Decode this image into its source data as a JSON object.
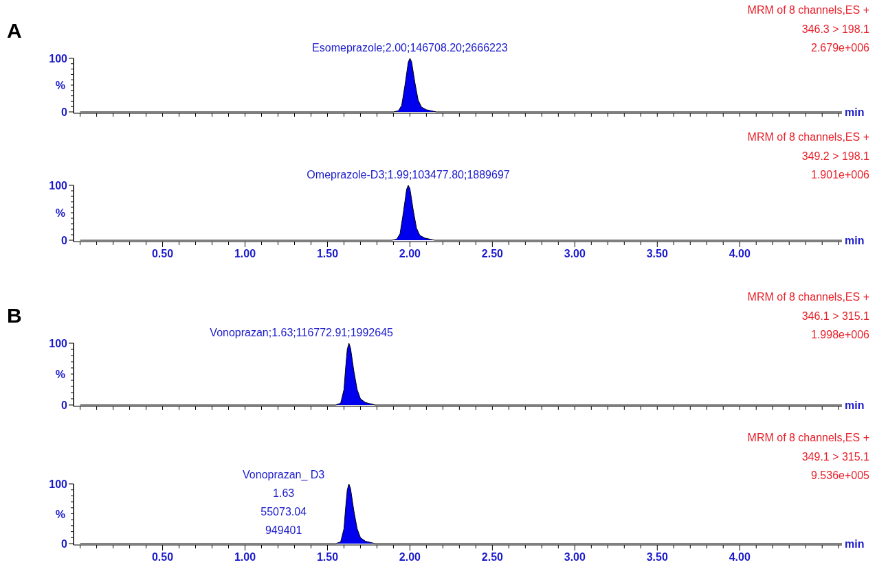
{
  "chart_data": [
    {
      "type": "area",
      "title": "A",
      "xlabel": "min",
      "ylabel": "%",
      "xlim": [
        -0.04,
        4.62
      ],
      "ylim": [
        0,
        100
      ],
      "tick_labels": "y",
      "grid": false,
      "xticks": [
        {
          "value": 0,
          "label": null
        },
        {
          "value": 0.1,
          "label": null
        },
        {
          "value": 0.2,
          "label": null
        },
        {
          "value": 0.3,
          "label": null
        },
        {
          "value": 0.4,
          "label": null
        },
        {
          "value": 0.5,
          "label": null
        },
        {
          "value": 0.6,
          "label": null
        },
        {
          "value": 0.7,
          "label": null
        },
        {
          "value": 0.8,
          "label": null
        },
        {
          "value": 0.9,
          "label": null
        },
        {
          "value": 1,
          "label": null
        },
        {
          "value": 1.1,
          "label": null
        },
        {
          "value": 1.2,
          "label": null
        },
        {
          "value": 1.3,
          "label": null
        },
        {
          "value": 1.4,
          "label": null
        },
        {
          "value": 1.5,
          "label": null
        },
        {
          "value": 1.6,
          "label": null
        },
        {
          "value": 1.7,
          "label": null
        },
        {
          "value": 1.8,
          "label": null
        },
        {
          "value": 1.9,
          "label": null
        },
        {
          "value": 2,
          "label": null
        },
        {
          "value": 2.1,
          "label": null
        },
        {
          "value": 2.2,
          "label": null
        },
        {
          "value": 2.3,
          "label": null
        },
        {
          "value": 2.4,
          "label": null
        },
        {
          "value": 2.5,
          "label": null
        },
        {
          "value": 2.6,
          "label": null
        },
        {
          "value": 2.7,
          "label": null
        },
        {
          "value": 2.8,
          "label": null
        },
        {
          "value": 2.9,
          "label": null
        },
        {
          "value": 3,
          "label": null
        },
        {
          "value": 3.1,
          "label": null
        },
        {
          "value": 3.2,
          "label": null
        },
        {
          "value": 3.3,
          "label": null
        },
        {
          "value": 3.4,
          "label": null
        },
        {
          "value": 3.5,
          "label": null
        },
        {
          "value": 3.6,
          "label": null
        },
        {
          "value": 3.7,
          "label": null
        },
        {
          "value": 3.8,
          "label": null
        },
        {
          "value": 3.9,
          "label": null
        },
        {
          "value": 4,
          "label": null
        },
        {
          "value": 4.1,
          "label": null
        },
        {
          "value": 4.2,
          "label": null
        },
        {
          "value": 4.3,
          "label": null
        },
        {
          "value": 4.4,
          "label": null
        },
        {
          "value": 4.5,
          "label": null
        },
        {
          "value": 4.6,
          "label": null
        }
      ],
      "yticks": [
        {
          "value": 0,
          "label": "0"
        },
        {
          "value": 10,
          "label": null
        },
        {
          "value": 20,
          "label": null
        },
        {
          "value": 30,
          "label": null
        },
        {
          "value": 40,
          "label": null
        },
        {
          "value": 50,
          "label": null
        },
        {
          "value": 60,
          "label": null
        },
        {
          "value": 70,
          "label": null
        },
        {
          "value": 80,
          "label": null
        },
        {
          "value": 90,
          "label": null
        },
        {
          "value": 100,
          "label": "100"
        }
      ],
      "series": [
        {
          "color": "#0000ee",
          "x": [
            0,
            1.9,
            1.93,
            1.95,
            1.97,
            1.99,
            2.0,
            2.01,
            2.03,
            2.05,
            2.07,
            2.1,
            2.13,
            2.16,
            4.62
          ],
          "values": [
            0,
            0,
            2,
            12,
            50,
            93,
            100,
            94,
            55,
            22,
            9,
            4,
            2,
            0,
            0
          ]
        }
      ],
      "annotations": [
        "MRM of 8 channels,ES +",
        "346.3 > 198.1",
        "2.679e+006",
        {
          "text": "Esomeprazole;2.00;146708.20;2666223",
          "x": 2.0,
          "y": 100
        }
      ]
    },
    {
      "type": "area",
      "xlabel": "min",
      "ylabel": "%",
      "xlim": [
        -0.04,
        4.62
      ],
      "ylim": [
        0,
        100
      ],
      "grid": false,
      "xticks": [
        {
          "value": 0,
          "label": null
        },
        {
          "value": 0.1,
          "label": null
        },
        {
          "value": 0.2,
          "label": null
        },
        {
          "value": 0.3,
          "label": null
        },
        {
          "value": 0.4,
          "label": null
        },
        {
          "value": 0.5,
          "label": "0.50"
        },
        {
          "value": 0.6,
          "label": null
        },
        {
          "value": 0.7,
          "label": null
        },
        {
          "value": 0.8,
          "label": null
        },
        {
          "value": 0.9,
          "label": null
        },
        {
          "value": 1,
          "label": "1.00"
        },
        {
          "value": 1.1,
          "label": null
        },
        {
          "value": 1.2,
          "label": null
        },
        {
          "value": 1.3,
          "label": null
        },
        {
          "value": 1.4,
          "label": null
        },
        {
          "value": 1.5,
          "label": "1.50"
        },
        {
          "value": 1.6,
          "label": null
        },
        {
          "value": 1.7,
          "label": null
        },
        {
          "value": 1.8,
          "label": null
        },
        {
          "value": 1.9,
          "label": null
        },
        {
          "value": 2,
          "label": "2.00"
        },
        {
          "value": 2.1,
          "label": null
        },
        {
          "value": 2.2,
          "label": null
        },
        {
          "value": 2.3,
          "label": null
        },
        {
          "value": 2.4,
          "label": null
        },
        {
          "value": 2.5,
          "label": "2.50"
        },
        {
          "value": 2.6,
          "label": null
        },
        {
          "value": 2.7,
          "label": null
        },
        {
          "value": 2.8,
          "label": null
        },
        {
          "value": 2.9,
          "label": null
        },
        {
          "value": 3,
          "label": "3.00"
        },
        {
          "value": 3.1,
          "label": null
        },
        {
          "value": 3.2,
          "label": null
        },
        {
          "value": 3.3,
          "label": null
        },
        {
          "value": 3.4,
          "label": null
        },
        {
          "value": 3.5,
          "label": "3.50"
        },
        {
          "value": 3.6,
          "label": null
        },
        {
          "value": 3.7,
          "label": null
        },
        {
          "value": 3.8,
          "label": null
        },
        {
          "value": 3.9,
          "label": null
        },
        {
          "value": 4,
          "label": "4.00"
        },
        {
          "value": 4.1,
          "label": null
        },
        {
          "value": 4.2,
          "label": null
        },
        {
          "value": 4.3,
          "label": null
        },
        {
          "value": 4.4,
          "label": null
        },
        {
          "value": 4.5,
          "label": null
        },
        {
          "value": 4.6,
          "label": null
        }
      ],
      "yticks": [
        {
          "value": 0,
          "label": "0"
        },
        {
          "value": 10,
          "label": null
        },
        {
          "value": 20,
          "label": null
        },
        {
          "value": 30,
          "label": null
        },
        {
          "value": 40,
          "label": null
        },
        {
          "value": 50,
          "label": null
        },
        {
          "value": 60,
          "label": null
        },
        {
          "value": 70,
          "label": null
        },
        {
          "value": 80,
          "label": null
        },
        {
          "value": 90,
          "label": null
        },
        {
          "value": 100,
          "label": "100"
        }
      ],
      "series": [
        {
          "color": "#0000ee",
          "x": [
            0,
            1.89,
            1.92,
            1.94,
            1.96,
            1.98,
            1.99,
            2.0,
            2.02,
            2.04,
            2.06,
            2.09,
            2.12,
            2.15,
            4.62
          ],
          "values": [
            0,
            0,
            2,
            12,
            50,
            93,
            100,
            94,
            55,
            22,
            9,
            4,
            2,
            0,
            0
          ]
        }
      ],
      "annotations": [
        "MRM of 8 channels,ES +",
        "349.2 > 198.1",
        "1.901e+006",
        {
          "text": "Omeprazole-D3;1.99;103477.80;1889697",
          "x": 1.99,
          "y": 100
        }
      ]
    },
    {
      "type": "area",
      "title": "B",
      "xlabel": "min",
      "ylabel": "%",
      "xlim": [
        -0.04,
        4.62
      ],
      "ylim": [
        0,
        100
      ],
      "tick_labels": "y",
      "grid": false,
      "xticks": [
        {
          "value": 0,
          "label": null
        },
        {
          "value": 0.1,
          "label": null
        },
        {
          "value": 0.2,
          "label": null
        },
        {
          "value": 0.3,
          "label": null
        },
        {
          "value": 0.4,
          "label": null
        },
        {
          "value": 0.5,
          "label": null
        },
        {
          "value": 0.6,
          "label": null
        },
        {
          "value": 0.7,
          "label": null
        },
        {
          "value": 0.8,
          "label": null
        },
        {
          "value": 0.9,
          "label": null
        },
        {
          "value": 1,
          "label": null
        },
        {
          "value": 1.1,
          "label": null
        },
        {
          "value": 1.2,
          "label": null
        },
        {
          "value": 1.3,
          "label": null
        },
        {
          "value": 1.4,
          "label": null
        },
        {
          "value": 1.5,
          "label": null
        },
        {
          "value": 1.6,
          "label": null
        },
        {
          "value": 1.7,
          "label": null
        },
        {
          "value": 1.8,
          "label": null
        },
        {
          "value": 1.9,
          "label": null
        },
        {
          "value": 2,
          "label": null
        },
        {
          "value": 2.1,
          "label": null
        },
        {
          "value": 2.2,
          "label": null
        },
        {
          "value": 2.3,
          "label": null
        },
        {
          "value": 2.4,
          "label": null
        },
        {
          "value": 2.5,
          "label": null
        },
        {
          "value": 2.6,
          "label": null
        },
        {
          "value": 2.7,
          "label": null
        },
        {
          "value": 2.8,
          "label": null
        },
        {
          "value": 2.9,
          "label": null
        },
        {
          "value": 3,
          "label": null
        },
        {
          "value": 3.1,
          "label": null
        },
        {
          "value": 3.2,
          "label": null
        },
        {
          "value": 3.3,
          "label": null
        },
        {
          "value": 3.4,
          "label": null
        },
        {
          "value": 3.5,
          "label": null
        },
        {
          "value": 3.6,
          "label": null
        },
        {
          "value": 3.7,
          "label": null
        },
        {
          "value": 3.8,
          "label": null
        },
        {
          "value": 3.9,
          "label": null
        },
        {
          "value": 4,
          "label": null
        },
        {
          "value": 4.1,
          "label": null
        },
        {
          "value": 4.2,
          "label": null
        },
        {
          "value": 4.3,
          "label": null
        },
        {
          "value": 4.4,
          "label": null
        },
        {
          "value": 4.5,
          "label": null
        },
        {
          "value": 4.6,
          "label": null
        }
      ],
      "yticks": [
        {
          "value": 0,
          "label": "0"
        },
        {
          "value": 10,
          "label": null
        },
        {
          "value": 20,
          "label": null
        },
        {
          "value": 30,
          "label": null
        },
        {
          "value": 40,
          "label": null
        },
        {
          "value": 50,
          "label": null
        },
        {
          "value": 60,
          "label": null
        },
        {
          "value": 70,
          "label": null
        },
        {
          "value": 80,
          "label": null
        },
        {
          "value": 90,
          "label": null
        },
        {
          "value": 100,
          "label": "100"
        }
      ],
      "series": [
        {
          "color": "#0000ee",
          "x": [
            0,
            1.55,
            1.58,
            1.6,
            1.61,
            1.62,
            1.63,
            1.64,
            1.66,
            1.68,
            1.7,
            1.73,
            1.76,
            1.79,
            4.62
          ],
          "values": [
            0,
            0,
            3,
            25,
            60,
            90,
            100,
            92,
            55,
            25,
            10,
            4,
            2,
            0,
            0
          ]
        }
      ],
      "annotations": [
        "MRM of 8 channels,ES +",
        "346.1 > 315.1",
        "1.998e+006",
        {
          "text": "Vonoprazan;1.63;116772.91;1992645",
          "x": 1.63,
          "y": 100
        }
      ]
    },
    {
      "type": "area",
      "xlabel": "min",
      "ylabel": "%",
      "xlim": [
        -0.04,
        4.62
      ],
      "ylim": [
        0,
        100
      ],
      "grid": false,
      "xticks": [
        {
          "value": 0,
          "label": null
        },
        {
          "value": 0.1,
          "label": null
        },
        {
          "value": 0.2,
          "label": null
        },
        {
          "value": 0.3,
          "label": null
        },
        {
          "value": 0.4,
          "label": null
        },
        {
          "value": 0.5,
          "label": "0.50"
        },
        {
          "value": 0.6,
          "label": null
        },
        {
          "value": 0.7,
          "label": null
        },
        {
          "value": 0.8,
          "label": null
        },
        {
          "value": 0.9,
          "label": null
        },
        {
          "value": 1,
          "label": "1.00"
        },
        {
          "value": 1.1,
          "label": null
        },
        {
          "value": 1.2,
          "label": null
        },
        {
          "value": 1.3,
          "label": null
        },
        {
          "value": 1.4,
          "label": null
        },
        {
          "value": 1.5,
          "label": "1.50"
        },
        {
          "value": 1.6,
          "label": null
        },
        {
          "value": 1.7,
          "label": null
        },
        {
          "value": 1.8,
          "label": null
        },
        {
          "value": 1.9,
          "label": null
        },
        {
          "value": 2,
          "label": "2.00"
        },
        {
          "value": 2.1,
          "label": null
        },
        {
          "value": 2.2,
          "label": null
        },
        {
          "value": 2.3,
          "label": null
        },
        {
          "value": 2.4,
          "label": null
        },
        {
          "value": 2.5,
          "label": "2.50"
        },
        {
          "value": 2.6,
          "label": null
        },
        {
          "value": 2.7,
          "label": null
        },
        {
          "value": 2.8,
          "label": null
        },
        {
          "value": 2.9,
          "label": null
        },
        {
          "value": 3,
          "label": "3.00"
        },
        {
          "value": 3.1,
          "label": null
        },
        {
          "value": 3.2,
          "label": null
        },
        {
          "value": 3.3,
          "label": null
        },
        {
          "value": 3.4,
          "label": null
        },
        {
          "value": 3.5,
          "label": "3.50"
        },
        {
          "value": 3.6,
          "label": null
        },
        {
          "value": 3.7,
          "label": null
        },
        {
          "value": 3.8,
          "label": null
        },
        {
          "value": 3.9,
          "label": null
        },
        {
          "value": 4,
          "label": "4.00"
        },
        {
          "value": 4.1,
          "label": null
        },
        {
          "value": 4.2,
          "label": null
        },
        {
          "value": 4.3,
          "label": null
        },
        {
          "value": 4.4,
          "label": null
        },
        {
          "value": 4.5,
          "label": null
        },
        {
          "value": 4.6,
          "label": null
        }
      ],
      "yticks": [
        {
          "value": 0,
          "label": "0"
        },
        {
          "value": 10,
          "label": null
        },
        {
          "value": 20,
          "label": null
        },
        {
          "value": 30,
          "label": null
        },
        {
          "value": 40,
          "label": null
        },
        {
          "value": 50,
          "label": null
        },
        {
          "value": 60,
          "label": null
        },
        {
          "value": 70,
          "label": null
        },
        {
          "value": 80,
          "label": null
        },
        {
          "value": 90,
          "label": null
        },
        {
          "value": 100,
          "label": "100"
        }
      ],
      "series": [
        {
          "color": "#0000ee",
          "x": [
            0,
            1.55,
            1.58,
            1.6,
            1.61,
            1.62,
            1.63,
            1.64,
            1.66,
            1.68,
            1.7,
            1.73,
            1.76,
            1.79,
            4.62
          ],
          "values": [
            0,
            0,
            3,
            25,
            60,
            90,
            100,
            92,
            55,
            25,
            10,
            4,
            2,
            0,
            0
          ]
        }
      ],
      "annotations": [
        "MRM of 8 channels,ES +",
        "349.1 > 315.1",
        "9.536e+005",
        {
          "text": "Vonoprazan_ D3\n1.63\n55073.04\n949401",
          "x": 1.63,
          "y": 100
        }
      ]
    }
  ]
}
